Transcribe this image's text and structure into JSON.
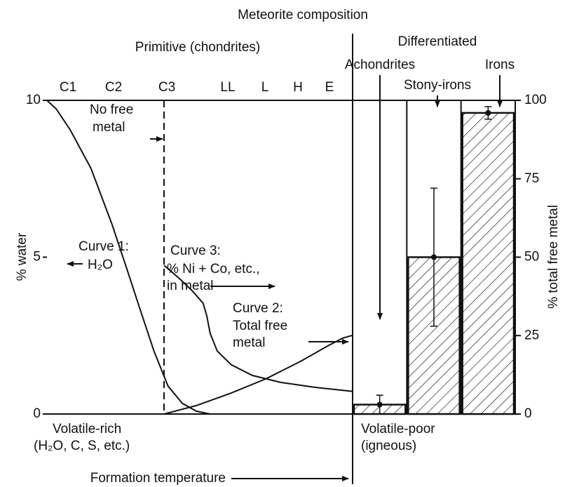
{
  "chart_data": [
    {
      "type": "line",
      "title": "Meteorite composition",
      "subtitle": "Primitive (chondrites)",
      "classes": [
        "C1",
        "C2",
        "C3",
        "LL",
        "L",
        "H",
        "E"
      ],
      "ylabel": "% water",
      "xlabel": "Formation temperature",
      "xlim": [
        0,
        10
      ],
      "ylim": [
        0,
        10
      ],
      "yticks": [
        0,
        5,
        10
      ],
      "y2lim": [
        0,
        100
      ],
      "series": [
        {
          "name": [
            "Curve 1:",
            "H₂O"
          ],
          "color": "#111111",
          "x": [
            0,
            0.3,
            0.76,
            1.44,
            2.13,
            2.59,
            3.04,
            3.5,
            3.96,
            4.43,
            4.89,
            5.34
          ],
          "values": [
            10,
            9.73,
            9.06,
            7.83,
            6.04,
            4.7,
            3.36,
            2.01,
            0.89,
            0.34,
            0.09,
            0
          ]
        },
        {
          "name": [
            "Curve 3:",
            "% Ni + Co, etc.,",
            "in metal"
          ],
          "color": "#111111",
          "x": [
            3.83,
            4.31,
            4.77,
            5.11,
            5.23,
            5.34,
            5.57,
            6.03,
            6.72,
            7.64,
            8.78,
            10
          ],
          "values": [
            4.74,
            4.34,
            3.91,
            3.53,
            3.13,
            2.57,
            2.01,
            1.57,
            1.23,
            1.01,
            0.85,
            0.72
          ]
        },
        {
          "name": [
            "Curve 2:",
            "Total free",
            "metal"
          ],
          "color": "#111111",
          "axis": "y2",
          "x": [
            3.83,
            4.89,
            6.03,
            7.16,
            8.3,
            9.22,
            9.68,
            10
          ],
          "values": [
            0,
            2.7,
            6.7,
            11.2,
            16.8,
            21.9,
            24.2,
            25.1
          ]
        }
      ],
      "annotations": {
        "no_free_metal": [
          "No free",
          "metal"
        ],
        "volatile_rich": [
          "Volatile-rich",
          "(H₂O, C, S, etc.)"
        ]
      }
    },
    {
      "type": "bar",
      "title": "Differentiated",
      "categories": [
        "Achondrites",
        "Stony-irons",
        "Irons"
      ],
      "values": [
        3,
        50,
        96
      ],
      "errors": [
        3,
        22,
        2
      ],
      "ylabel": "% total free metal",
      "ylim": [
        0,
        100
      ],
      "yticks": [
        0,
        25,
        50,
        75,
        100
      ],
      "hatch": true,
      "annotations": {
        "volatile_poor": [
          "Volatile-poor",
          "(igneous)"
        ]
      }
    }
  ]
}
